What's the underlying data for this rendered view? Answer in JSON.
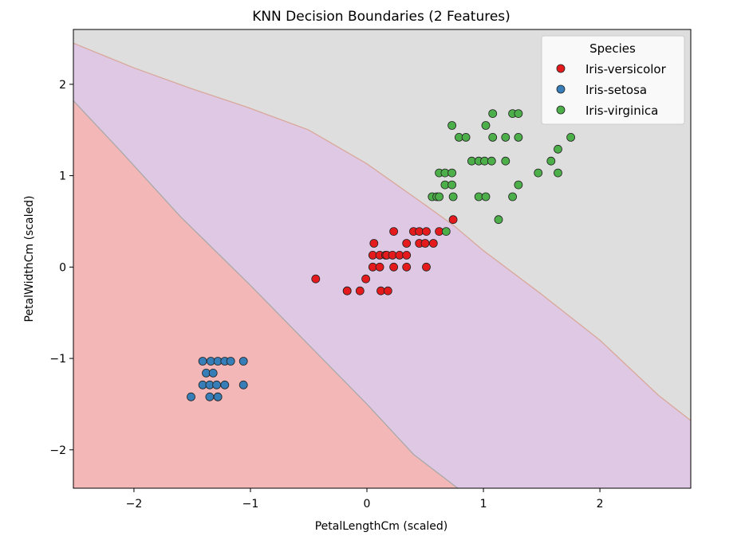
{
  "chart_data": {
    "type": "scatter",
    "title": "KNN Decision Boundaries (2 Features)",
    "xlabel": "PetalLengthCm (scaled)",
    "ylabel": "PetalWidthCm (scaled)",
    "xlim": [
      -2.52,
      2.78
    ],
    "ylim": [
      -2.42,
      2.6
    ],
    "x_ticks": [
      -2,
      -1,
      0,
      1,
      2
    ],
    "x_tick_labels": [
      "−2",
      "−1",
      "0",
      "1",
      "2"
    ],
    "y_ticks": [
      -2,
      -1,
      0,
      1,
      2
    ],
    "y_tick_labels": [
      "−2",
      "−1",
      "0",
      "1",
      "2"
    ],
    "grid": false,
    "legend": {
      "title": "Species",
      "placement": "top-right"
    },
    "regions": [
      {
        "class": "Iris-setosa",
        "color": "#f4b7b7",
        "boundary": [
          [
            -2.52,
            2.6
          ],
          [
            -2.52,
            1.82
          ],
          [
            -2.1,
            1.25
          ],
          [
            -1.6,
            0.55
          ],
          [
            -1.0,
            -0.2
          ],
          [
            -0.5,
            -0.85
          ],
          [
            0.0,
            -1.5
          ],
          [
            0.4,
            -2.05
          ],
          [
            0.78,
            -2.42
          ],
          [
            -2.52,
            -2.42
          ]
        ]
      },
      {
        "class": "Iris-versicolor",
        "color": "#dfc8e3",
        "boundary": [
          [
            -2.52,
            2.45
          ],
          [
            -2.0,
            2.18
          ],
          [
            -1.5,
            1.95
          ],
          [
            -1.03,
            1.75
          ],
          [
            -0.5,
            1.5
          ],
          [
            0.0,
            1.13
          ],
          [
            0.5,
            0.68
          ],
          [
            0.75,
            0.45
          ],
          [
            1.0,
            0.18
          ],
          [
            1.5,
            -0.3
          ],
          [
            2.0,
            -0.8
          ],
          [
            2.5,
            -1.4
          ],
          [
            2.78,
            -1.68
          ],
          [
            2.78,
            -2.42
          ],
          [
            0.78,
            -2.42
          ],
          [
            0.4,
            -2.05
          ],
          [
            0.0,
            -1.5
          ],
          [
            -0.5,
            -0.85
          ],
          [
            -1.0,
            -0.2
          ],
          [
            -1.6,
            0.55
          ],
          [
            -2.1,
            1.25
          ],
          [
            -2.52,
            1.82
          ]
        ]
      },
      {
        "class": "Iris-virginica",
        "color": "#dedede",
        "boundary": [
          [
            -2.52,
            2.6
          ],
          [
            2.78,
            2.6
          ],
          [
            2.78,
            -1.68
          ],
          [
            2.5,
            -1.4
          ],
          [
            2.0,
            -0.8
          ],
          [
            1.5,
            -0.3
          ],
          [
            1.0,
            0.18
          ],
          [
            0.75,
            0.45
          ],
          [
            0.5,
            0.68
          ],
          [
            0.0,
            1.13
          ],
          [
            -0.5,
            1.5
          ],
          [
            -1.03,
            1.75
          ],
          [
            -1.5,
            1.95
          ],
          [
            -2.0,
            2.18
          ],
          [
            -2.52,
            2.45
          ]
        ]
      }
    ],
    "series": [
      {
        "name": "Iris-versicolor",
        "color": "#e41a1c",
        "points": [
          [
            -0.44,
            -0.13
          ],
          [
            -0.17,
            -0.26
          ],
          [
            -0.17,
            -0.26
          ],
          [
            -0.06,
            -0.26
          ],
          [
            -0.01,
            -0.13
          ],
          [
            0.05,
            0.13
          ],
          [
            0.05,
            0.0
          ],
          [
            0.06,
            0.26
          ],
          [
            0.11,
            0.13
          ],
          [
            0.11,
            0.0
          ],
          [
            0.12,
            -0.26
          ],
          [
            0.16,
            0.13
          ],
          [
            0.17,
            0.13
          ],
          [
            0.18,
            -0.26
          ],
          [
            0.22,
            0.13
          ],
          [
            0.23,
            0.0
          ],
          [
            0.23,
            0.39
          ],
          [
            0.28,
            0.13
          ],
          [
            0.34,
            0.13
          ],
          [
            0.34,
            0.0
          ],
          [
            0.34,
            0.26
          ],
          [
            0.4,
            0.39
          ],
          [
            0.45,
            0.39
          ],
          [
            0.45,
            0.26
          ],
          [
            0.5,
            0.26
          ],
          [
            0.51,
            0.39
          ],
          [
            0.51,
            0.0
          ],
          [
            0.57,
            0.26
          ],
          [
            0.62,
            0.39
          ],
          [
            0.74,
            0.52
          ]
        ]
      },
      {
        "name": "Iris-setosa",
        "color": "#377eb8",
        "points": [
          [
            -1.51,
            -1.42
          ],
          [
            -1.41,
            -1.03
          ],
          [
            -1.41,
            -1.29
          ],
          [
            -1.38,
            -1.16
          ],
          [
            -1.35,
            -1.42
          ],
          [
            -1.35,
            -1.29
          ],
          [
            -1.34,
            -1.03
          ],
          [
            -1.32,
            -1.16
          ],
          [
            -1.29,
            -1.29
          ],
          [
            -1.28,
            -1.03
          ],
          [
            -1.28,
            -1.42
          ],
          [
            -1.28,
            -1.42
          ],
          [
            -1.22,
            -1.03
          ],
          [
            -1.22,
            -1.29
          ],
          [
            -1.17,
            -1.03
          ],
          [
            -1.06,
            -1.03
          ],
          [
            -1.06,
            -1.29
          ]
        ]
      },
      {
        "name": "Iris-virginica",
        "color": "#4daf4a",
        "points": [
          [
            0.56,
            0.77
          ],
          [
            0.6,
            0.77
          ],
          [
            0.62,
            1.03
          ],
          [
            0.62,
            0.77
          ],
          [
            0.67,
            1.03
          ],
          [
            0.67,
            0.9
          ],
          [
            0.68,
            0.39
          ],
          [
            0.73,
            1.03
          ],
          [
            0.73,
            0.9
          ],
          [
            0.74,
            0.77
          ],
          [
            0.73,
            1.55
          ],
          [
            0.79,
            1.42
          ],
          [
            0.85,
            1.42
          ],
          [
            0.9,
            1.16
          ],
          [
            0.96,
            1.16
          ],
          [
            0.96,
            0.77
          ],
          [
            1.01,
            1.16
          ],
          [
            1.02,
            0.77
          ],
          [
            1.02,
            1.55
          ],
          [
            1.07,
            1.16
          ],
          [
            1.08,
            1.42
          ],
          [
            1.08,
            1.68
          ],
          [
            1.13,
            0.52
          ],
          [
            1.19,
            1.42
          ],
          [
            1.19,
            1.16
          ],
          [
            1.25,
            0.77
          ],
          [
            1.25,
            1.68
          ],
          [
            1.3,
            1.68
          ],
          [
            1.3,
            1.42
          ],
          [
            1.3,
            0.9
          ],
          [
            1.47,
            1.03
          ],
          [
            1.58,
            1.16
          ],
          [
            1.64,
            1.29
          ],
          [
            1.64,
            1.03
          ],
          [
            1.75,
            1.42
          ]
        ]
      }
    ]
  }
}
